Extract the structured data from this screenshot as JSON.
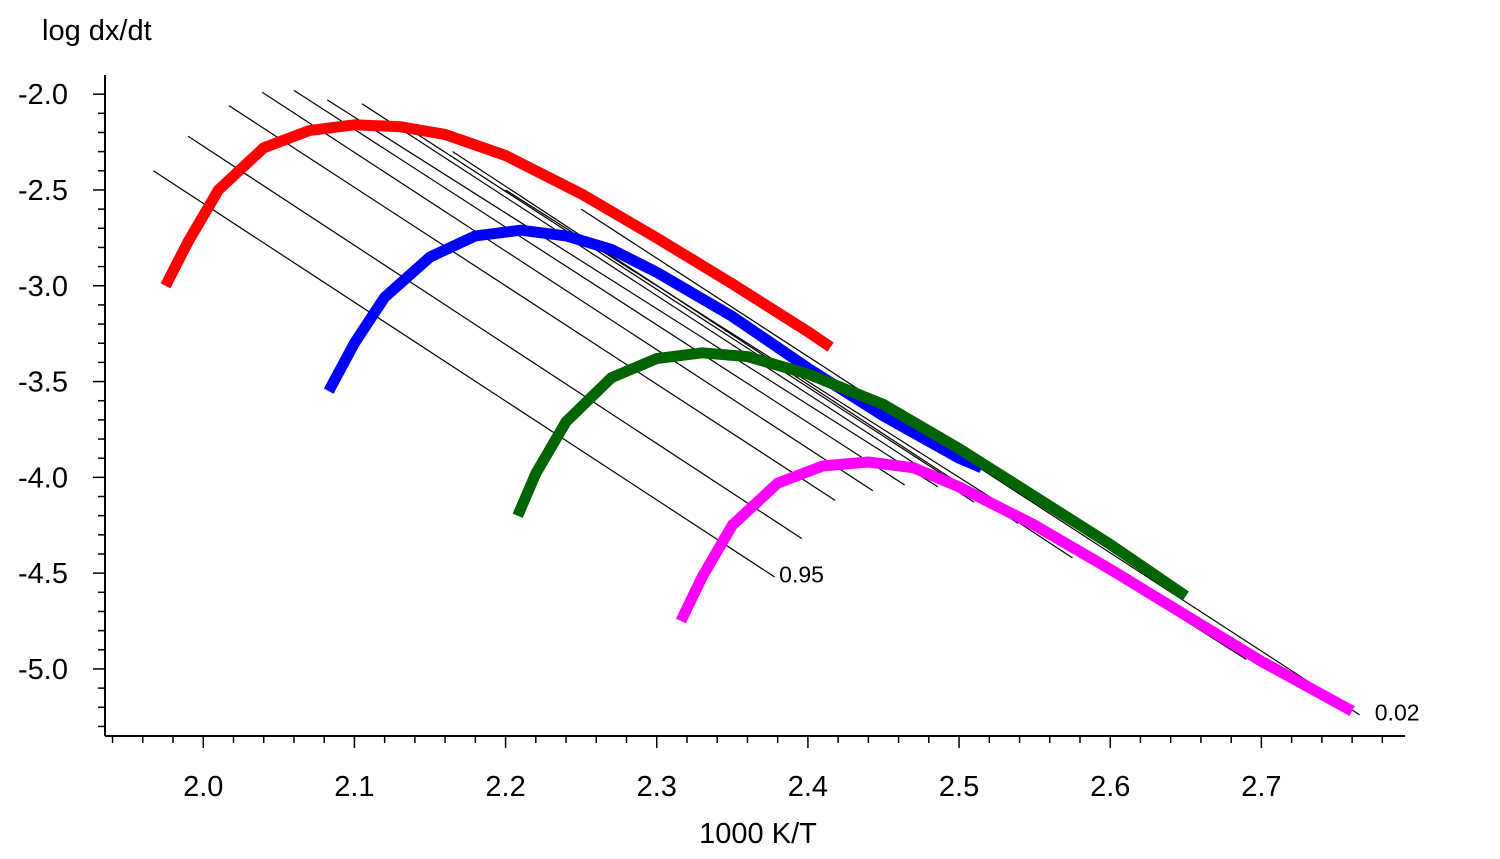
{
  "chart_data": {
    "type": "line",
    "xlabel": "1000 K/T",
    "ylabel": "log dx/dt",
    "xlim": [
      1.935,
      2.795
    ],
    "ylim": [
      -5.35,
      -1.9
    ],
    "grid": false,
    "x_ticks": [
      {
        "value": 2.0,
        "label": "2.0"
      },
      {
        "value": 2.1,
        "label": "2.1"
      },
      {
        "value": 2.2,
        "label": "2.2"
      },
      {
        "value": 2.3,
        "label": "2.3"
      },
      {
        "value": 2.4,
        "label": "2.4"
      },
      {
        "value": 2.5,
        "label": "2.5"
      },
      {
        "value": 2.6,
        "label": "2.6"
      },
      {
        "value": 2.7,
        "label": "2.7"
      }
    ],
    "y_ticks": [
      {
        "value": -2.0,
        "label": "-2.0"
      },
      {
        "value": -2.5,
        "label": "-2.5"
      },
      {
        "value": -3.0,
        "label": "-3.0"
      },
      {
        "value": -3.5,
        "label": "-3.5"
      },
      {
        "value": -4.0,
        "label": "-4.0"
      },
      {
        "value": -4.5,
        "label": "-4.5"
      },
      {
        "value": -5.0,
        "label": "-5.0"
      }
    ],
    "series": [
      {
        "color": "#ff0000",
        "x": [
          1.975,
          1.99,
          2.01,
          2.04,
          2.07,
          2.1,
          2.13,
          2.16,
          2.2,
          2.25,
          2.3,
          2.35,
          2.4,
          2.415
        ],
        "y": [
          -3.0,
          -2.77,
          -2.5,
          -2.28,
          -2.19,
          -2.16,
          -2.17,
          -2.21,
          -2.32,
          -2.52,
          -2.75,
          -2.99,
          -3.24,
          -3.32
        ]
      },
      {
        "color": "#0000ff",
        "x": [
          2.083,
          2.1,
          2.12,
          2.15,
          2.18,
          2.21,
          2.24,
          2.27,
          2.3,
          2.35,
          2.4,
          2.45,
          2.5,
          2.515
        ],
        "y": [
          -3.55,
          -3.3,
          -3.06,
          -2.85,
          -2.74,
          -2.71,
          -2.74,
          -2.81,
          -2.93,
          -3.16,
          -3.43,
          -3.68,
          -3.9,
          -3.95
        ]
      },
      {
        "color": "#006400",
        "x": [
          2.208,
          2.22,
          2.24,
          2.27,
          2.3,
          2.33,
          2.36,
          2.4,
          2.45,
          2.5,
          2.55,
          2.6,
          2.65
        ],
        "y": [
          -4.2,
          -3.98,
          -3.71,
          -3.48,
          -3.38,
          -3.35,
          -3.37,
          -3.46,
          -3.62,
          -3.85,
          -4.1,
          -4.35,
          -4.62
        ]
      },
      {
        "color": "#ff00ff",
        "x": [
          2.316,
          2.33,
          2.35,
          2.38,
          2.41,
          2.44,
          2.47,
          2.5,
          2.55,
          2.6,
          2.65,
          2.7,
          2.76
        ],
        "y": [
          -4.75,
          -4.52,
          -4.25,
          -4.03,
          -3.94,
          -3.92,
          -3.95,
          -4.05,
          -4.25,
          -4.48,
          -4.72,
          -4.96,
          -5.22
        ]
      }
    ],
    "isoconversion_lines": [
      {
        "x": [
          1.967,
          2.378
        ],
        "y": [
          -2.4,
          -4.52
        ]
      },
      {
        "x": [
          1.99,
          2.396
        ],
        "y": [
          -2.22,
          -4.32
        ]
      },
      {
        "x": [
          2.017,
          2.418
        ],
        "y": [
          -2.06,
          -4.12
        ]
      },
      {
        "x": [
          2.039,
          2.443
        ],
        "y": [
          -1.99,
          -4.07
        ]
      },
      {
        "x": [
          2.06,
          2.464
        ],
        "y": [
          -1.98,
          -4.04
        ]
      },
      {
        "x": [
          2.082,
          2.486
        ],
        "y": [
          -2.03,
          -4.05
        ]
      },
      {
        "x": [
          2.105,
          2.51
        ],
        "y": [
          -2.05,
          -4.13
        ]
      },
      {
        "x": [
          2.13,
          2.539
        ],
        "y": [
          -2.15,
          -4.24
        ]
      },
      {
        "x": [
          2.165,
          2.575
        ],
        "y": [
          -2.3,
          -4.42
        ]
      },
      {
        "x": [
          2.2,
          2.69
        ],
        "y": [
          -2.5,
          -4.95
        ]
      },
      {
        "x": [
          2.25,
          2.765
        ],
        "y": [
          -2.6,
          -5.24
        ]
      }
    ],
    "annotations": [
      {
        "text": "0.95",
        "x": 2.381,
        "y": -4.55
      },
      {
        "text": "0.02",
        "x": 2.775,
        "y": -5.27
      }
    ]
  }
}
